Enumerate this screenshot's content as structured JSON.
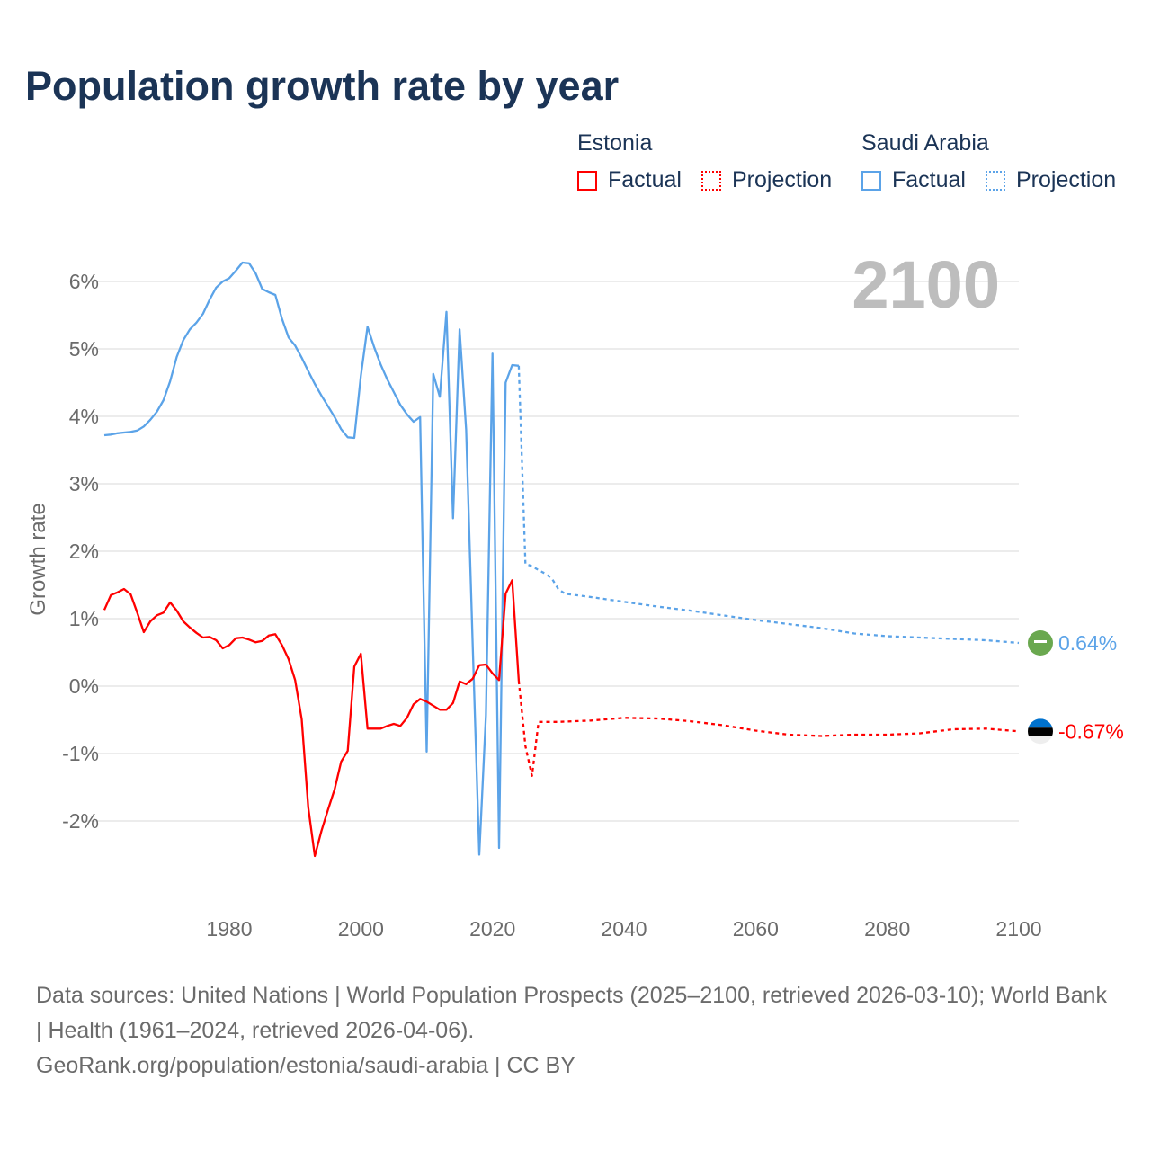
{
  "title": "Population growth rate by year",
  "legend": {
    "groups": [
      {
        "name": "Estonia",
        "factual": "Factual",
        "projection": "Projection",
        "color": "#ff0000"
      },
      {
        "name": "Saudi Arabia",
        "factual": "Factual",
        "projection": "Projection",
        "color": "#5ba3e8"
      }
    ]
  },
  "year_label": "2100",
  "footer": {
    "sources": "Data sources: United Nations | World Population Prospects (2025–2100, retrieved 2026-03-10); World Bank | Health (1961–2024, retrieved 2026-04-06).",
    "link": "GeoRank.org/population/estonia/saudi-arabia | CC BY"
  },
  "chart_data": {
    "type": "line",
    "title": "Population growth rate by year",
    "xlabel": "",
    "ylabel": "Growth rate",
    "xlim": [
      1961,
      2100
    ],
    "ylim": [
      -3.3,
      6.6
    ],
    "x_ticks": [
      1980,
      2000,
      2020,
      2040,
      2060,
      2080,
      2100
    ],
    "x_tick_labels": [
      "1980",
      "2000",
      "2020",
      "2040",
      "2060",
      "2080",
      "2100"
    ],
    "y_ticks": [
      -2,
      -1,
      0,
      1,
      2,
      3,
      4,
      5,
      6
    ],
    "y_tick_labels": [
      "-2%",
      "-1%",
      "0%",
      "1%",
      "2%",
      "3%",
      "4%",
      "5%",
      "6%"
    ],
    "grid": true,
    "legend_position": "top-right",
    "series": [
      {
        "name": "Saudi Arabia Factual",
        "color": "#5ba3e8",
        "dash": false,
        "x": [
          1961,
          1962,
          1963,
          1964,
          1965,
          1966,
          1967,
          1968,
          1969,
          1970,
          1971,
          1972,
          1973,
          1974,
          1975,
          1976,
          1977,
          1978,
          1979,
          1980,
          1981,
          1982,
          1983,
          1984,
          1985,
          1986,
          1987,
          1988,
          1989,
          1990,
          1991,
          1992,
          1993,
          1994,
          1995,
          1996,
          1997,
          1998,
          1999,
          2000,
          2001,
          2002,
          2003,
          2004,
          2005,
          2006,
          2007,
          2008,
          2009,
          2010,
          2011,
          2012,
          2013,
          2014,
          2015,
          2016,
          2017,
          2018,
          2019,
          2020,
          2021,
          2022,
          2023,
          2024
        ],
        "y": [
          3.72,
          3.73,
          3.75,
          3.76,
          3.77,
          3.79,
          3.85,
          3.95,
          4.07,
          4.24,
          4.52,
          4.88,
          5.13,
          5.29,
          5.39,
          5.52,
          5.73,
          5.91,
          6.0,
          6.05,
          6.16,
          6.28,
          6.27,
          6.12,
          5.89,
          5.84,
          5.8,
          5.45,
          5.17,
          5.05,
          4.87,
          4.67,
          4.48,
          4.31,
          4.15,
          3.99,
          3.81,
          3.69,
          3.68,
          4.6,
          5.33,
          5.03,
          4.77,
          4.55,
          4.36,
          4.17,
          4.03,
          3.92,
          3.99,
          -0.97,
          4.63,
          4.29,
          5.55,
          2.49,
          5.29,
          3.8,
          0.6,
          -2.5,
          -0.43,
          4.93,
          -2.4,
          4.5,
          4.76,
          4.75
        ]
      },
      {
        "name": "Saudi Arabia Projection",
        "color": "#5ba3e8",
        "dash": true,
        "x": [
          2024,
          2025,
          2026,
          2027,
          2028,
          2029,
          2030,
          2031,
          2035,
          2040,
          2045,
          2050,
          2055,
          2060,
          2065,
          2070,
          2075,
          2080,
          2085,
          2090,
          2095,
          2100
        ],
        "y": [
          4.75,
          1.81,
          1.78,
          1.72,
          1.67,
          1.6,
          1.44,
          1.37,
          1.32,
          1.25,
          1.18,
          1.12,
          1.05,
          0.98,
          0.92,
          0.86,
          0.78,
          0.74,
          0.72,
          0.7,
          0.68,
          0.64
        ]
      },
      {
        "name": "Estonia Factual",
        "color": "#ff0000",
        "dash": false,
        "x": [
          1961,
          1962,
          1963,
          1964,
          1965,
          1966,
          1967,
          1968,
          1969,
          1970,
          1971,
          1972,
          1973,
          1974,
          1975,
          1976,
          1977,
          1978,
          1979,
          1980,
          1981,
          1982,
          1983,
          1984,
          1985,
          1986,
          1987,
          1988,
          1989,
          1990,
          1991,
          1992,
          1993,
          1994,
          1995,
          1996,
          1997,
          1998,
          1999,
          2000,
          2001,
          2002,
          2003,
          2004,
          2005,
          2006,
          2007,
          2008,
          2009,
          2010,
          2011,
          2012,
          2013,
          2014,
          2015,
          2016,
          2017,
          2018,
          2019,
          2020,
          2021,
          2022,
          2023,
          2024
        ],
        "y": [
          1.13,
          1.35,
          1.39,
          1.44,
          1.36,
          1.09,
          0.8,
          0.96,
          1.05,
          1.09,
          1.24,
          1.12,
          0.96,
          0.87,
          0.79,
          0.72,
          0.73,
          0.68,
          0.56,
          0.61,
          0.71,
          0.72,
          0.69,
          0.65,
          0.67,
          0.75,
          0.77,
          0.61,
          0.4,
          0.09,
          -0.49,
          -1.8,
          -2.52,
          -2.15,
          -1.83,
          -1.53,
          -1.12,
          -0.96,
          0.29,
          0.48,
          -0.63,
          -0.63,
          -0.63,
          -0.59,
          -0.56,
          -0.59,
          -0.47,
          -0.27,
          -0.19,
          -0.23,
          -0.29,
          -0.35,
          -0.35,
          -0.25,
          0.07,
          0.03,
          0.11,
          0.31,
          0.32,
          0.19,
          0.09,
          1.37,
          1.57,
          0.08
        ]
      },
      {
        "name": "Estonia Projection",
        "color": "#ff0000",
        "dash": true,
        "x": [
          2024,
          2025,
          2026,
          2027,
          2030,
          2035,
          2040,
          2045,
          2050,
          2055,
          2060,
          2065,
          2070,
          2075,
          2080,
          2085,
          2090,
          2095,
          2100
        ],
        "y": [
          0.08,
          -0.89,
          -1.33,
          -0.53,
          -0.53,
          -0.51,
          -0.47,
          -0.48,
          -0.52,
          -0.58,
          -0.66,
          -0.72,
          -0.74,
          -0.72,
          -0.72,
          -0.7,
          -0.64,
          -0.63,
          -0.67
        ]
      }
    ],
    "end_labels": [
      {
        "country": "Saudi Arabia",
        "value": 0.64,
        "text": "0.64%",
        "color": "#5ba3e8",
        "flag": "saudi-flag"
      },
      {
        "country": "Estonia",
        "value": -0.67,
        "text": "-0.67%",
        "color": "#ff0000",
        "flag": "estonia-flag"
      }
    ]
  }
}
